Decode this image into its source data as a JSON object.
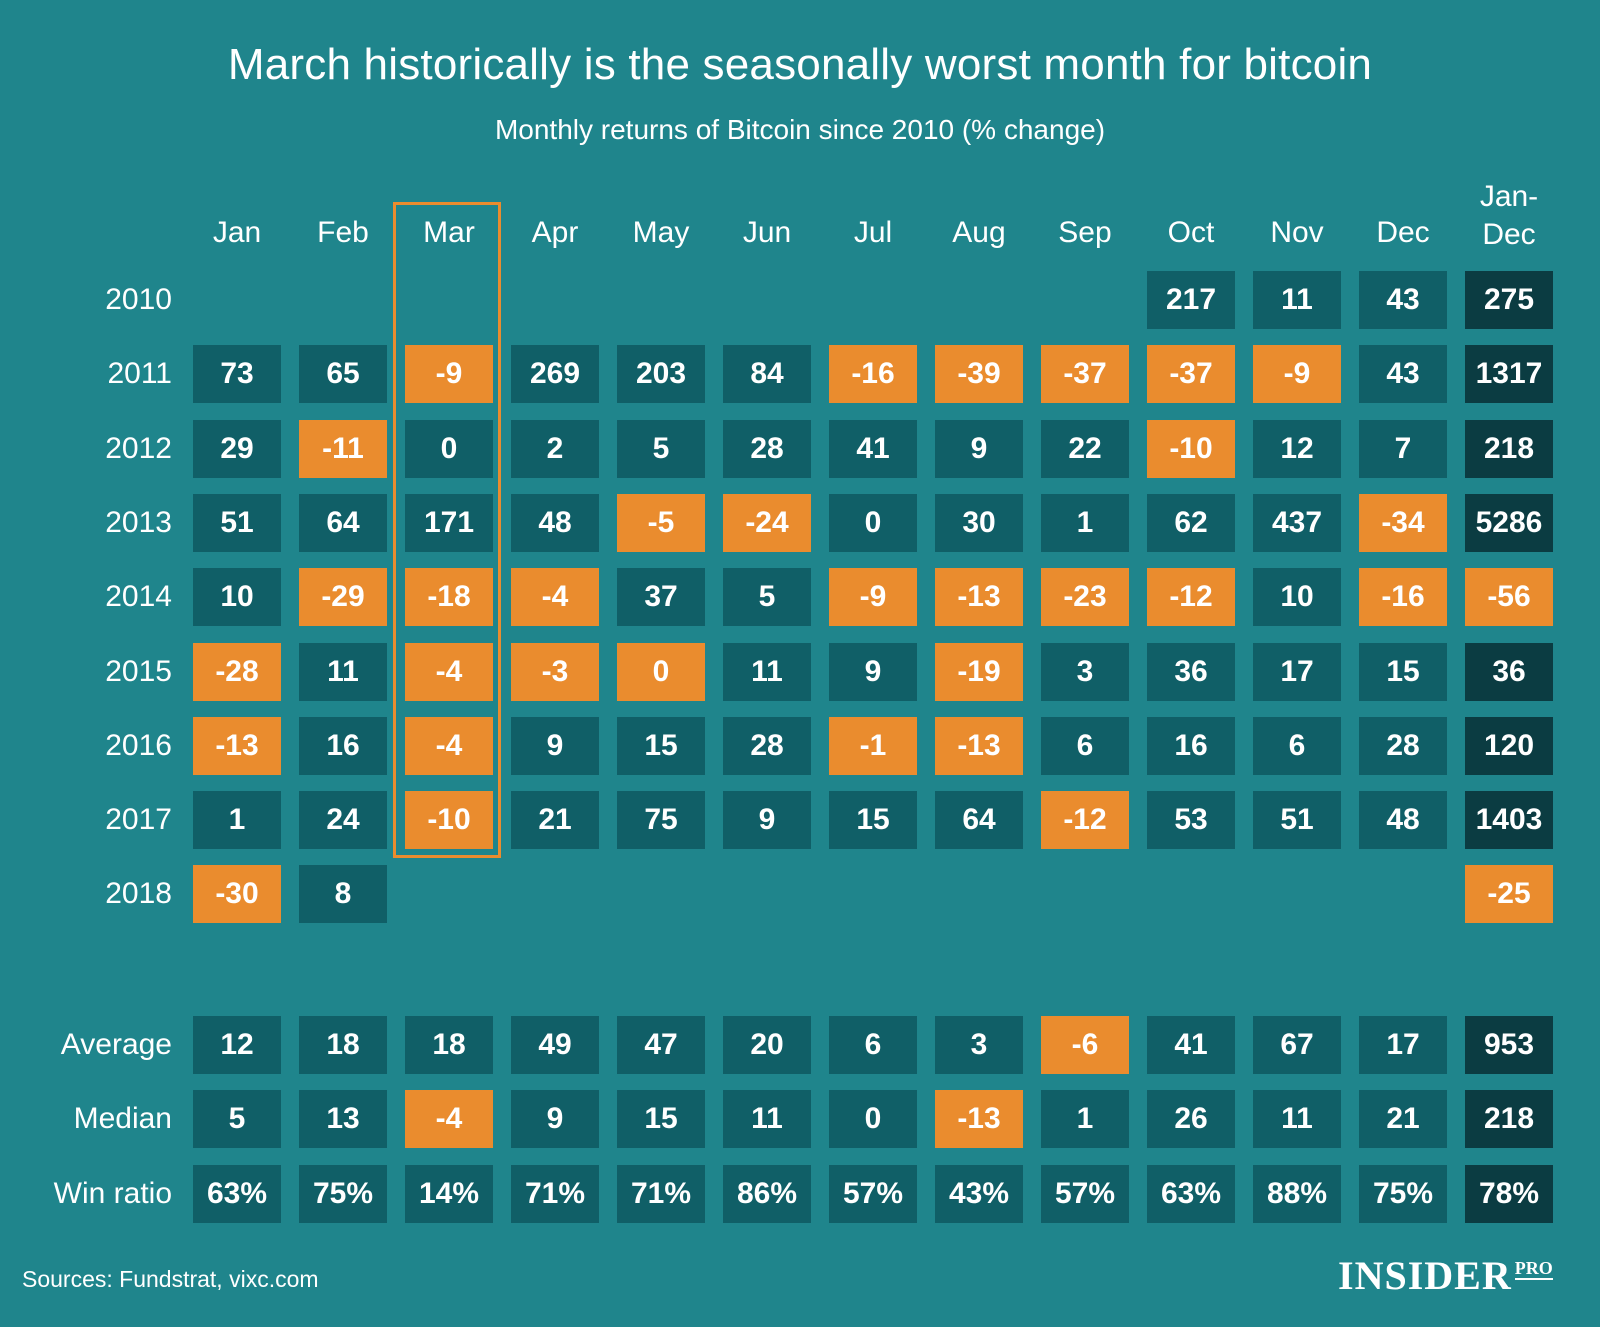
{
  "title": "March historically is the seasonally worst month for bitcoin",
  "subtitle": "Monthly returns of Bitcoin since 2010 (% change)",
  "source": "Sources: Fundstrat, vixc.com",
  "logo": {
    "main": "INSIDER",
    "sub": "PRO"
  },
  "colors": {
    "background": "#1f858c",
    "positive": "#105f67",
    "negative": "#ea8c2e",
    "total": "#0b3c42",
    "highlight_border": "#ea8c2e"
  },
  "chart_data": {
    "type": "table",
    "title": "March historically is the seasonally worst month for bitcoin",
    "subtitle": "Monthly returns of Bitcoin since 2010 (% change)",
    "columns": [
      "Jan",
      "Feb",
      "Mar",
      "Apr",
      "May",
      "Jun",
      "Jul",
      "Aug",
      "Sep",
      "Oct",
      "Nov",
      "Dec",
      "Jan-Dec"
    ],
    "highlighted_column": "Mar",
    "rows": [
      {
        "label": "2010",
        "values": [
          "",
          "",
          "",
          "",
          "",
          "",
          "",
          "",
          "",
          "217",
          "11",
          "43",
          "275"
        ]
      },
      {
        "label": "2011",
        "values": [
          "73",
          "65",
          "-9",
          "269",
          "203",
          "84",
          "-16",
          "-39",
          "-37",
          "-37",
          "-9",
          "43",
          "1317"
        ]
      },
      {
        "label": "2012",
        "values": [
          "29",
          "-11",
          "0",
          "2",
          "5",
          "28",
          "41",
          "9",
          "22",
          "-10",
          "12",
          "7",
          "218"
        ]
      },
      {
        "label": "2013",
        "values": [
          "51",
          "64",
          "171",
          "48",
          "-5",
          "-24",
          "0",
          "30",
          "1",
          "62",
          "437",
          "-34",
          "5286"
        ]
      },
      {
        "label": "2014",
        "values": [
          "10",
          "-29",
          "-18",
          "-4",
          "37",
          "5",
          "-9",
          "-13",
          "-23",
          "-12",
          "10",
          "-16",
          "-56"
        ]
      },
      {
        "label": "2015",
        "values": [
          "-28",
          "11",
          "-4",
          "-3",
          "0",
          "11",
          "9",
          "-19",
          "3",
          "36",
          "17",
          "15",
          "36"
        ]
      },
      {
        "label": "2016",
        "values": [
          "-13",
          "16",
          "-4",
          "9",
          "15",
          "28",
          "-1",
          "-13",
          "6",
          "16",
          "6",
          "28",
          "120"
        ]
      },
      {
        "label": "2017",
        "values": [
          "1",
          "24",
          "-10",
          "21",
          "75",
          "9",
          "15",
          "64",
          "-12",
          "53",
          "51",
          "48",
          "1403"
        ]
      },
      {
        "label": "2018",
        "values": [
          "-30",
          "8",
          "",
          "",
          "",
          "",
          "",
          "",
          "",
          "",
          "",
          "",
          "-25"
        ]
      }
    ],
    "negative_cells": [
      [
        1,
        2
      ],
      [
        1,
        6
      ],
      [
        1,
        7
      ],
      [
        1,
        8
      ],
      [
        1,
        9
      ],
      [
        1,
        10
      ],
      [
        2,
        1
      ],
      [
        2,
        9
      ],
      [
        3,
        4
      ],
      [
        3,
        5
      ],
      [
        3,
        11
      ],
      [
        4,
        1
      ],
      [
        4,
        2
      ],
      [
        4,
        3
      ],
      [
        4,
        6
      ],
      [
        4,
        7
      ],
      [
        4,
        8
      ],
      [
        4,
        9
      ],
      [
        4,
        11
      ],
      [
        4,
        12
      ],
      [
        5,
        0
      ],
      [
        5,
        2
      ],
      [
        5,
        3
      ],
      [
        5,
        4
      ],
      [
        5,
        7
      ],
      [
        6,
        0
      ],
      [
        6,
        2
      ],
      [
        6,
        6
      ],
      [
        6,
        7
      ],
      [
        7,
        2
      ],
      [
        7,
        8
      ],
      [
        8,
        0
      ],
      [
        8,
        12
      ]
    ],
    "summary": [
      {
        "label": "Average",
        "values": [
          "12",
          "18",
          "18",
          "49",
          "47",
          "20",
          "6",
          "3",
          "-6",
          "41",
          "67",
          "17",
          "953"
        ],
        "negative": [
          8
        ]
      },
      {
        "label": "Median",
        "values": [
          "5",
          "13",
          "-4",
          "9",
          "15",
          "11",
          "0",
          "-13",
          "1",
          "26",
          "11",
          "21",
          "218"
        ],
        "negative": [
          2,
          7
        ]
      },
      {
        "label": "Win ratio",
        "values": [
          "63%",
          "75%",
          "14%",
          "71%",
          "71%",
          "86%",
          "57%",
          "43%",
          "57%",
          "63%",
          "88%",
          "75%",
          "78%"
        ],
        "negative": []
      }
    ]
  }
}
